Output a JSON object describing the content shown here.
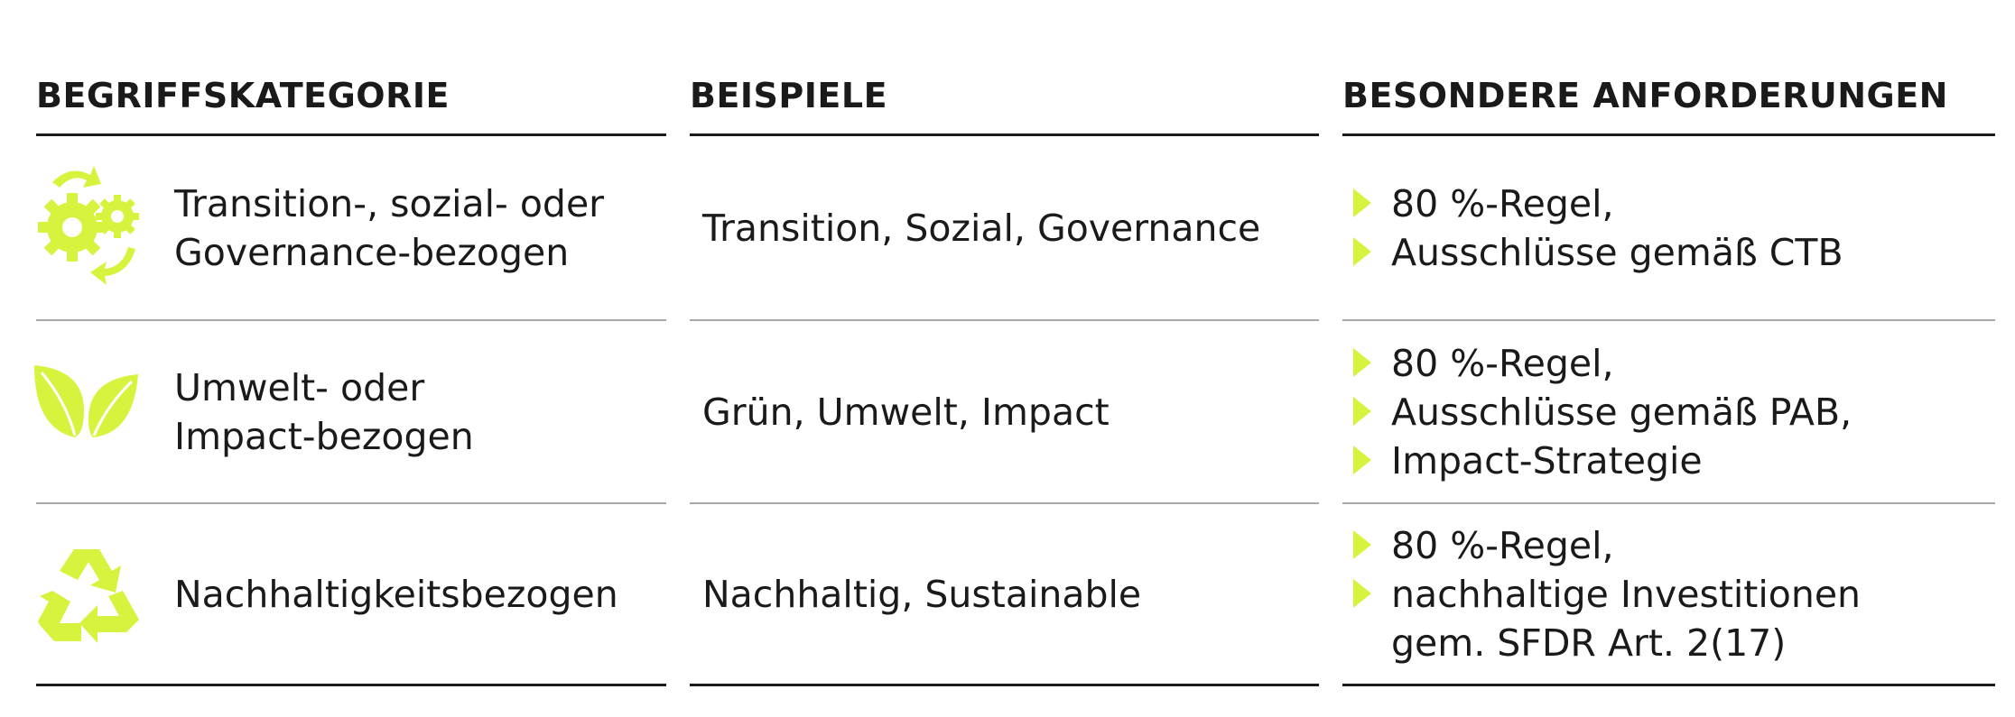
{
  "table": {
    "headers": [
      "BEGRIFFSKATEGORIE",
      "BEISPIELE",
      "BESONDERE ANFORDERUNGEN"
    ],
    "rows": [
      {
        "category": [
          "Transition-, sozial- oder",
          "Governance-bezogen"
        ],
        "examples": "Transition, Sozial, Governance",
        "requirements": [
          [
            "80 %-Regel,"
          ],
          [
            "Ausschlüsse gemäß CTB"
          ]
        ]
      },
      {
        "category": [
          "Umwelt- oder",
          "Impact-bezogen"
        ],
        "examples": "Grün, Umwelt, Impact",
        "requirements": [
          [
            "80 %-Regel,"
          ],
          [
            "Ausschlüsse gemäß PAB,"
          ],
          [
            "Impact-Strategie"
          ]
        ]
      },
      {
        "category": [
          "Nachhaltigkeitsbezogen"
        ],
        "examples": "Nachhaltig, Sustainable",
        "requirements": [
          [
            "80 %-Regel,"
          ],
          [
            "nachhaltige Investitionen",
            "gem. SFDR Art. 2(17)"
          ]
        ]
      }
    ]
  }
}
